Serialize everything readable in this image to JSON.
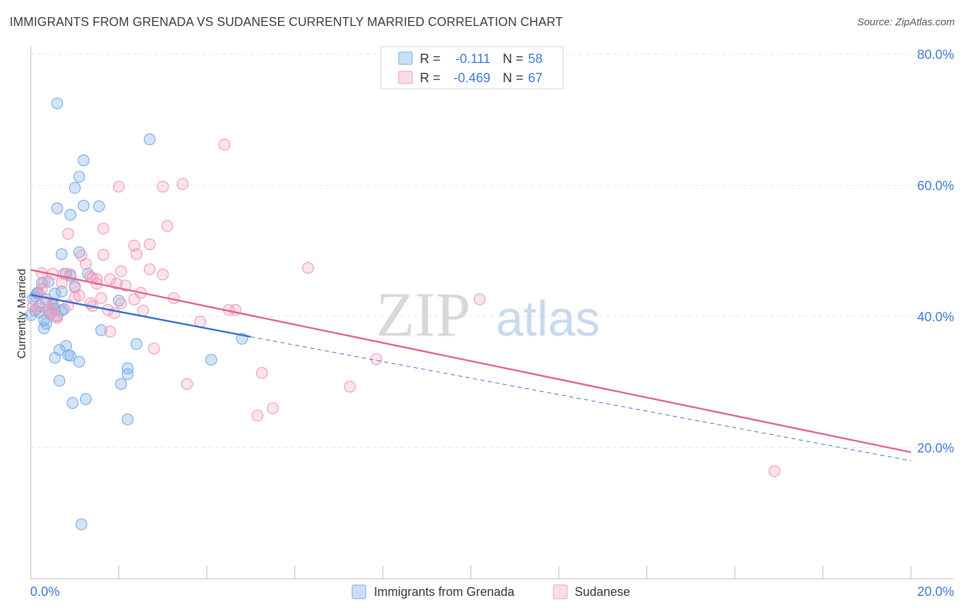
{
  "title": "IMMIGRANTS FROM GRENADA VS SUDANESE CURRENTLY MARRIED CORRELATION CHART",
  "source": "Source: ZipAtlas.com",
  "watermark": {
    "zip": "ZIP",
    "atlas": "atlas"
  },
  "legend_box": {
    "rows": [
      {
        "r_label": "R =",
        "r_value": "-0.111",
        "n_label": "N =",
        "n_value": "58",
        "color": "#7aaeea"
      },
      {
        "r_label": "R =",
        "r_value": "-0.469",
        "n_label": "N =",
        "n_value": "67",
        "color": "#f29ab7"
      }
    ]
  },
  "bottom_legend": [
    {
      "label": "Immigrants from Grenada",
      "color": "#7aaeea"
    },
    {
      "label": "Sudanese",
      "color": "#f29ab7"
    }
  ],
  "chart_data": {
    "type": "scatter",
    "xlabel": "",
    "ylabel": "Currently Married",
    "xlim": [
      0,
      20
    ],
    "ylim": [
      0,
      80
    ],
    "x_tick_labels": [
      {
        "value": 0,
        "label": "0.0%"
      },
      {
        "value": 20,
        "label": "20.0%"
      }
    ],
    "y_tick_labels": [
      {
        "value": 80,
        "label": "80.0%"
      },
      {
        "value": 60,
        "label": "60.0%"
      },
      {
        "value": 40,
        "label": "40.0%"
      },
      {
        "value": 20,
        "label": "20.0%"
      }
    ],
    "grid": true,
    "colors": {
      "grenada": "#7aaeea",
      "sudanese": "#f29ab7",
      "grenada_line": "#2f6fd0",
      "sudanese_line": "#e0638f"
    },
    "series": [
      {
        "name": "Immigrants from Grenada",
        "points": [
          [
            0.6,
            72.5
          ],
          [
            2.7,
            67.0
          ],
          [
            1.2,
            63.8
          ],
          [
            1.1,
            61.3
          ],
          [
            1.0,
            59.6
          ],
          [
            0.6,
            56.5
          ],
          [
            1.2,
            56.9
          ],
          [
            1.55,
            56.8
          ],
          [
            0.9,
            55.5
          ],
          [
            0.7,
            49.5
          ],
          [
            1.1,
            49.8
          ],
          [
            0.8,
            46.5
          ],
          [
            1.3,
            46.5
          ],
          [
            0.9,
            46.2
          ],
          [
            0.4,
            45.3
          ],
          [
            0.25,
            45.1
          ],
          [
            1.0,
            44.6
          ],
          [
            0.7,
            43.8
          ],
          [
            0.55,
            43.5
          ],
          [
            0.15,
            43.6
          ],
          [
            0.1,
            43.1
          ],
          [
            0.05,
            42.7
          ],
          [
            2.0,
            42.4
          ],
          [
            0.35,
            42.6
          ],
          [
            0.5,
            41.8
          ],
          [
            0.2,
            41.6
          ],
          [
            0.55,
            41.2
          ],
          [
            0.4,
            41.0
          ],
          [
            0.7,
            40.9
          ],
          [
            0.1,
            40.9
          ],
          [
            0.2,
            40.6
          ],
          [
            0.45,
            40.5
          ],
          [
            0.6,
            40.1
          ],
          [
            0.0,
            40.2
          ],
          [
            0.3,
            39.4
          ],
          [
            0.35,
            38.9
          ],
          [
            0.3,
            38.2
          ],
          [
            1.6,
            37.9
          ],
          [
            4.8,
            36.6
          ],
          [
            2.4,
            35.8
          ],
          [
            0.8,
            35.5
          ],
          [
            0.65,
            34.9
          ],
          [
            0.85,
            34.1
          ],
          [
            0.9,
            34.0
          ],
          [
            0.55,
            33.7
          ],
          [
            1.1,
            33.1
          ],
          [
            4.1,
            33.4
          ],
          [
            2.2,
            32.1
          ],
          [
            2.2,
            31.2
          ],
          [
            0.65,
            30.2
          ],
          [
            2.05,
            29.7
          ],
          [
            1.25,
            27.4
          ],
          [
            0.95,
            26.8
          ],
          [
            2.2,
            24.3
          ],
          [
            1.15,
            8.3
          ],
          [
            0.15,
            43.5
          ],
          [
            0.5,
            42.0
          ],
          [
            0.75,
            41.1
          ]
        ]
      },
      {
        "name": "Sudanese",
        "points": [
          [
            4.4,
            66.2
          ],
          [
            3.45,
            60.2
          ],
          [
            3.0,
            59.8
          ],
          [
            2.0,
            59.8
          ],
          [
            3.1,
            53.8
          ],
          [
            1.65,
            53.4
          ],
          [
            0.85,
            52.6
          ],
          [
            2.7,
            51.0
          ],
          [
            2.35,
            50.8
          ],
          [
            1.65,
            49.4
          ],
          [
            1.15,
            49.3
          ],
          [
            2.4,
            49.5
          ],
          [
            6.3,
            47.4
          ],
          [
            1.25,
            48.0
          ],
          [
            2.7,
            47.2
          ],
          [
            2.05,
            46.9
          ],
          [
            0.25,
            46.6
          ],
          [
            3.0,
            46.4
          ],
          [
            0.5,
            46.5
          ],
          [
            0.75,
            46.5
          ],
          [
            0.9,
            46.4
          ],
          [
            1.35,
            46.1
          ],
          [
            1.4,
            45.9
          ],
          [
            1.5,
            45.7
          ],
          [
            1.8,
            45.7
          ],
          [
            0.3,
            45.2
          ],
          [
            0.7,
            45.1
          ],
          [
            1.5,
            45.0
          ],
          [
            1.95,
            45.0
          ],
          [
            2.15,
            44.7
          ],
          [
            1.0,
            44.4
          ],
          [
            2.5,
            43.6
          ],
          [
            0.2,
            43.4
          ],
          [
            1.1,
            43.2
          ],
          [
            1.6,
            42.8
          ],
          [
            3.25,
            42.8
          ],
          [
            2.35,
            42.6
          ],
          [
            10.2,
            42.6
          ],
          [
            0.35,
            42.2
          ],
          [
            0.5,
            42.0
          ],
          [
            1.35,
            42.0
          ],
          [
            2.05,
            42.0
          ],
          [
            0.85,
            41.7
          ],
          [
            1.4,
            41.6
          ],
          [
            0.05,
            41.5
          ],
          [
            0.15,
            41.2
          ],
          [
            1.75,
            41.0
          ],
          [
            4.65,
            41.0
          ],
          [
            4.5,
            41.0
          ],
          [
            0.5,
            40.7
          ],
          [
            2.55,
            40.9
          ],
          [
            0.4,
            40.6
          ],
          [
            1.9,
            40.5
          ],
          [
            0.55,
            40.0
          ],
          [
            0.6,
            39.8
          ],
          [
            3.85,
            39.2
          ],
          [
            1.8,
            37.7
          ],
          [
            2.8,
            35.1
          ],
          [
            7.85,
            33.5
          ],
          [
            5.25,
            31.4
          ],
          [
            3.55,
            29.7
          ],
          [
            7.25,
            29.3
          ],
          [
            5.5,
            26.0
          ],
          [
            5.15,
            24.9
          ],
          [
            16.9,
            16.4
          ],
          [
            1.0,
            42.9
          ],
          [
            0.25,
            44.2
          ]
        ]
      }
    ],
    "trendlines": [
      {
        "series": "Immigrants from Grenada",
        "solid": [
          [
            0,
            43.3
          ],
          [
            5.0,
            36.9
          ]
        ],
        "dashed": [
          [
            5.0,
            36.9
          ],
          [
            20.0,
            18.0
          ]
        ]
      },
      {
        "series": "Sudanese",
        "solid": [
          [
            0,
            47.1
          ],
          [
            20.0,
            19.3
          ]
        ]
      }
    ]
  }
}
